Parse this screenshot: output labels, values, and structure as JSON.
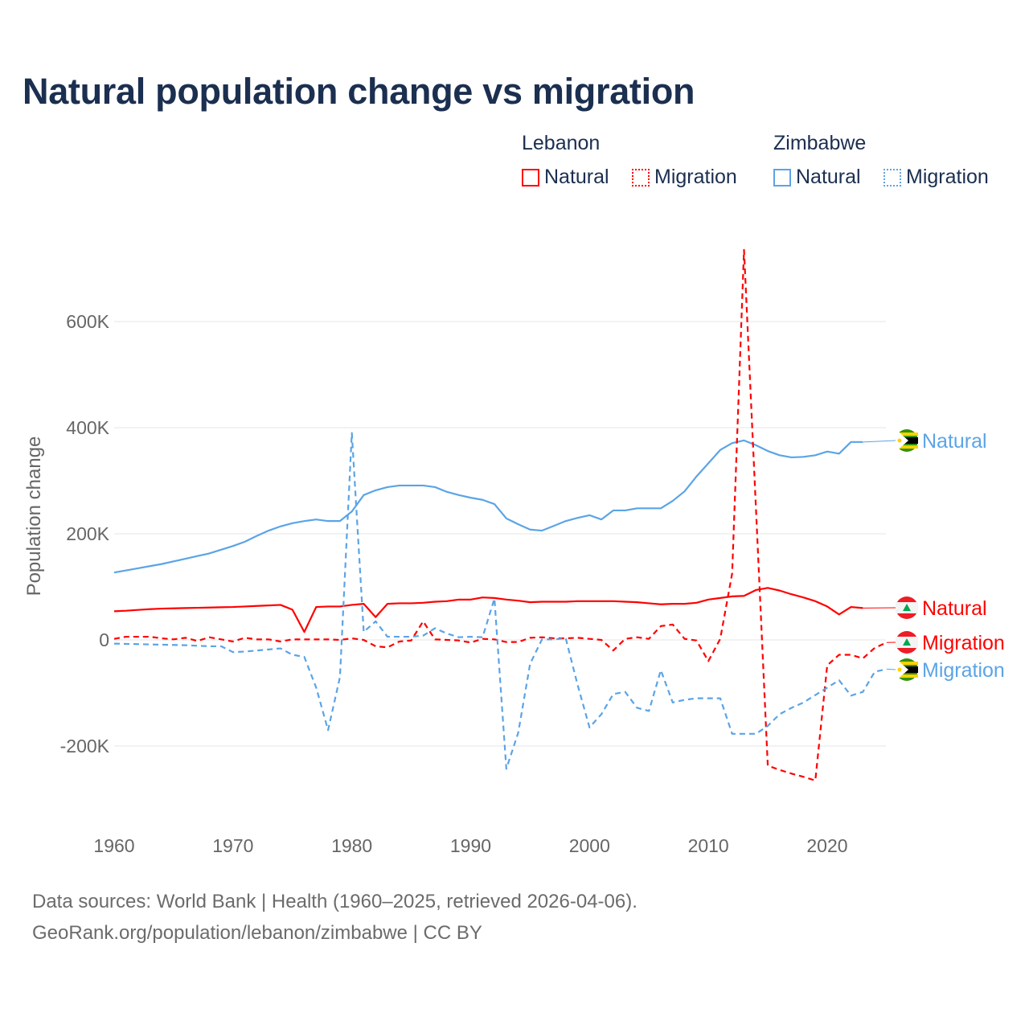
{
  "chart_data": {
    "type": "line",
    "title": "Natural population change vs migration",
    "xlabel": "",
    "ylabel": "Population change",
    "xlim": [
      1960,
      2025
    ],
    "ylim": [
      -300000,
      750000
    ],
    "x_ticks": [
      1960,
      1970,
      1980,
      1990,
      2000,
      2010,
      2020
    ],
    "x_tick_labels": [
      "1960",
      "1970",
      "1980",
      "1990",
      "2000",
      "2010",
      "2020"
    ],
    "y_ticks": [
      -200000,
      0,
      200000,
      400000,
      600000
    ],
    "y_tick_labels": [
      "-200K",
      "0",
      "200K",
      "400K",
      "600K"
    ],
    "grid": true,
    "legend_placement": "top-right",
    "legend": {
      "groups": [
        {
          "name": "Lebanon",
          "items": [
            "Natural",
            "Migration"
          ]
        },
        {
          "name": "Zimbabwe",
          "items": [
            "Natural",
            "Migration"
          ]
        }
      ]
    },
    "colors": {
      "lebanon": "#ff0000",
      "zimbabwe": "#5ba4e6"
    },
    "series": [
      {
        "name": "Zimbabwe Natural",
        "country": "Zimbabwe",
        "kind": "Natural",
        "end_label": "Natural",
        "dashed": false,
        "color": "#5ba4e6",
        "start_year": 1960,
        "values": [
          127000,
          131000,
          135000,
          139000,
          143000,
          148000,
          153000,
          158000,
          163000,
          170000,
          177000,
          185000,
          196000,
          206000,
          214000,
          220000,
          224000,
          227000,
          224000,
          224000,
          242000,
          273000,
          282000,
          288000,
          291000,
          291000,
          291000,
          288000,
          279000,
          273000,
          268000,
          264000,
          256000,
          229000,
          218000,
          208000,
          206000,
          215000,
          224000,
          230000,
          235000,
          227000,
          244000,
          244000,
          248000,
          248000,
          248000,
          262000,
          280000,
          308000,
          333000,
          358000,
          371000,
          376000,
          367000,
          356000,
          348000,
          344000,
          345000,
          348000,
          355000,
          351000,
          373000,
          373000
        ]
      },
      {
        "name": "Lebanon Natural",
        "country": "Lebanon",
        "kind": "Natural",
        "end_label": "Natural",
        "dashed": false,
        "color": "#ff0000",
        "start_year": 1960,
        "values": [
          54000,
          55000,
          56500,
          58000,
          59000,
          59500,
          60000,
          60500,
          61000,
          61500,
          62000,
          63000,
          64000,
          65000,
          66000,
          57000,
          15000,
          62000,
          63000,
          63000,
          66000,
          68000,
          43000,
          68000,
          69000,
          69000,
          70000,
          72000,
          73000,
          76000,
          76000,
          80000,
          79000,
          76000,
          74000,
          71000,
          72000,
          72000,
          72000,
          73000,
          73000,
          73000,
          73000,
          72000,
          71000,
          69000,
          67000,
          68000,
          68000,
          70000,
          76000,
          79000,
          82000,
          83000,
          94000,
          98000,
          93000,
          86000,
          80000,
          73000,
          63000,
          48000,
          62000,
          60000
        ]
      },
      {
        "name": "Lebanon Migration",
        "country": "Lebanon",
        "kind": "Migration",
        "end_label": "Migration",
        "dashed": true,
        "color": "#ff0000",
        "start_year": 1960,
        "values": [
          2000,
          6000,
          6000,
          6000,
          3000,
          1000,
          4000,
          -2000,
          5000,
          1000,
          -3000,
          4000,
          1000,
          1000,
          -3000,
          1000,
          1000,
          1000,
          1000,
          0,
          3000,
          0,
          -12000,
          -14000,
          -3000,
          -1000,
          35000,
          1000,
          0,
          -1000,
          -5000,
          2000,
          1000,
          -4000,
          -4000,
          4000,
          5000,
          3000,
          3000,
          4000,
          2000,
          0,
          -20000,
          2000,
          5000,
          2000,
          26000,
          29000,
          2000,
          -1000,
          -40000,
          2000,
          125000,
          735000,
          250000,
          -237000,
          -245000,
          -252000,
          -258000,
          -265000,
          -48000,
          -28000,
          -28000,
          -35000,
          -15000,
          -5000
        ]
      },
      {
        "name": "Zimbabwe Migration",
        "country": "Zimbabwe",
        "kind": "Migration",
        "end_label": "Migration",
        "dashed": true,
        "color": "#5ba4e6",
        "start_year": 1960,
        "values": [
          -7000,
          -7500,
          -8000,
          -8500,
          -9000,
          -9500,
          -10000,
          -11000,
          -12000,
          -12000,
          -23000,
          -22000,
          -20000,
          -18000,
          -16000,
          -28000,
          -32000,
          -90000,
          -170000,
          -70000,
          390000,
          15000,
          35000,
          6000,
          6000,
          6000,
          8000,
          22000,
          12000,
          5000,
          6000,
          5000,
          78000,
          -243000,
          -175000,
          -45000,
          1000,
          1000,
          3000,
          -85000,
          -165000,
          -140000,
          -102000,
          -98000,
          -128000,
          -134000,
          -57000,
          -118000,
          -113000,
          -110000,
          -110000,
          -110000,
          -177000,
          -177000,
          -177000,
          -162000,
          -140000,
          -128000,
          -118000,
          -104000,
          -90000,
          -76000,
          -105000,
          -98000,
          -60000,
          -55000
        ]
      }
    ]
  },
  "footer": {
    "line1": "Data sources: World Bank | Health (1960–2025, retrieved 2026-04-06).",
    "line2": "GeoRank.org/population/lebanon/zimbabwe | CC BY"
  }
}
